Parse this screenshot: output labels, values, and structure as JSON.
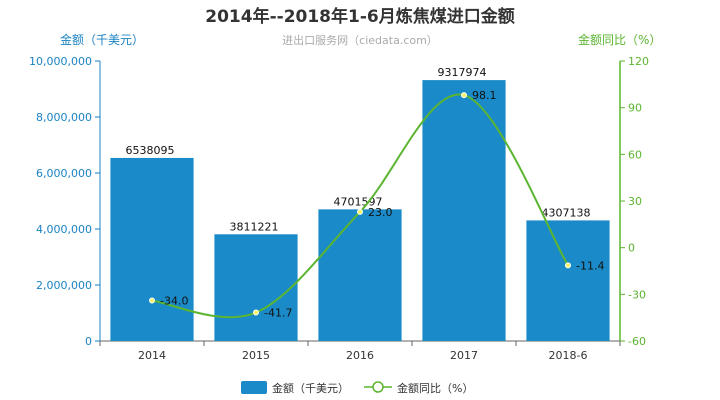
{
  "chart_data": {
    "type": "bar",
    "title": "2014年--2018年1-6月炼焦煤进口金额",
    "subtitle": "进出口服务网（ciedata.com）",
    "categories": [
      "2014",
      "2015",
      "2016",
      "2017",
      "2018-6"
    ],
    "series": [
      {
        "name": "金额（千美元）",
        "type": "bar",
        "axis": "left",
        "values": [
          6538095,
          3811221,
          4701597,
          9317974,
          4307138
        ],
        "labels": [
          "6538095",
          "3811221",
          "4701597",
          "9317974",
          "4307138"
        ]
      },
      {
        "name": "金额同比（%）",
        "type": "line",
        "axis": "right",
        "values": [
          -34.0,
          -41.7,
          23.0,
          98.1,
          -11.4
        ],
        "labels": [
          "-34.0",
          "-41.7",
          "23.0",
          "98.1",
          "-11.4"
        ]
      }
    ],
    "y_left": {
      "label": "金额（千美元）",
      "min": 0,
      "max": 10000000,
      "ticks": [
        0,
        2000000,
        4000000,
        6000000,
        8000000,
        10000000
      ],
      "tick_labels": [
        "0",
        "2,000,000",
        "4,000,000",
        "6,000,000",
        "8,000,000",
        "10,000,000"
      ]
    },
    "y_right": {
      "label": "金额同比（%）",
      "min": -60,
      "max": 120,
      "ticks": [
        -60,
        -30,
        0,
        30,
        60,
        90,
        120
      ],
      "tick_labels": [
        "-60",
        "-30",
        "0",
        "30",
        "60",
        "90",
        "120"
      ]
    },
    "grid": false,
    "legend_position": "bottom-center",
    "colors": {
      "bar": "#1a8bc8",
      "line": "#5cb531",
      "left_axis": "#1a83c4",
      "right_axis": "#5cb531"
    }
  }
}
